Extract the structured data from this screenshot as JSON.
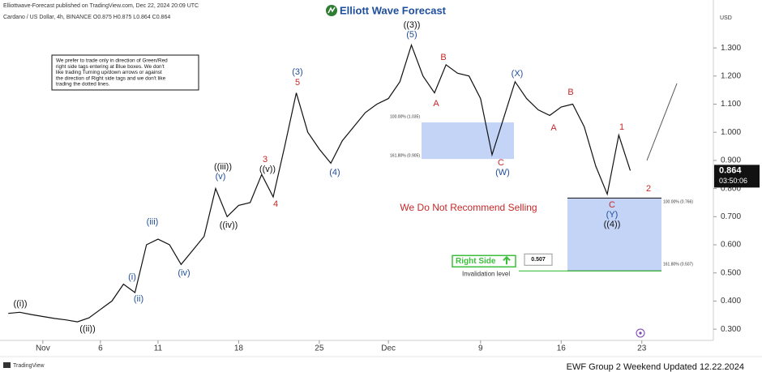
{
  "header": {
    "publisher": "Elliottwave-Forecast published on TradingView.com, Dec 22, 2024 20:09 UTC",
    "symbol": "Cardano / US Dollar, 4h, BINANCE  O0.875  H0.875  L0.864  C0.864",
    "logo": "Elliott Wave Forecast",
    "currency": "USD"
  },
  "chart_data": {
    "type": "line",
    "color": "#111111",
    "x": [
      "2024-10-29",
      "2024-10-30",
      "2024-10-31",
      "2024-11-01",
      "2024-11-02",
      "2024-11-03",
      "2024-11-04",
      "2024-11-05",
      "2024-11-06",
      "2024-11-07",
      "2024-11-08",
      "2024-11-09",
      "2024-11-10",
      "2024-11-11",
      "2024-11-12",
      "2024-11-13",
      "2024-11-14",
      "2024-11-15",
      "2024-11-16",
      "2024-11-17",
      "2024-11-18",
      "2024-11-19",
      "2024-11-20",
      "2024-11-21",
      "2024-11-22",
      "2024-11-23",
      "2024-11-24",
      "2024-11-25",
      "2024-11-26",
      "2024-11-27",
      "2024-11-28",
      "2024-11-29",
      "2024-11-30",
      "2024-12-01",
      "2024-12-02",
      "2024-12-03",
      "2024-12-04",
      "2024-12-05",
      "2024-12-06",
      "2024-12-07",
      "2024-12-08",
      "2024-12-09",
      "2024-12-10",
      "2024-12-11",
      "2024-12-12",
      "2024-12-13",
      "2024-12-14",
      "2024-12-15",
      "2024-12-16",
      "2024-12-17",
      "2024-12-18",
      "2024-12-19",
      "2024-12-20",
      "2024-12-21",
      "2024-12-22"
    ],
    "values": [
      0.356,
      0.36,
      0.352,
      0.345,
      0.338,
      0.333,
      0.326,
      0.34,
      0.37,
      0.4,
      0.46,
      0.43,
      0.6,
      0.62,
      0.6,
      0.53,
      0.58,
      0.63,
      0.8,
      0.7,
      0.74,
      0.75,
      0.85,
      0.77,
      0.95,
      1.14,
      1.0,
      0.94,
      0.89,
      0.97,
      1.02,
      1.07,
      1.1,
      1.12,
      1.18,
      1.31,
      1.2,
      1.14,
      1.24,
      1.21,
      1.2,
      1.12,
      0.92,
      1.05,
      1.18,
      1.12,
      1.08,
      1.06,
      1.09,
      1.1,
      1.02,
      0.88,
      0.78,
      0.99,
      0.864
    ],
    "xlim": [
      "2024-10-28",
      "2024-12-29"
    ],
    "ylim": [
      0.26,
      1.43
    ],
    "xticks": [
      {
        "value": "2024-11-01",
        "label": "Nov"
      },
      {
        "value": "2024-11-06",
        "label": "6"
      },
      {
        "value": "2024-11-11",
        "label": "11"
      },
      {
        "value": "2024-11-18",
        "label": "18"
      },
      {
        "value": "2024-11-25",
        "label": "25"
      },
      {
        "value": "2024-12-01",
        "label": "Dec"
      },
      {
        "value": "2024-12-09",
        "label": "9"
      },
      {
        "value": "2024-12-16",
        "label": "16"
      },
      {
        "value": "2024-12-23",
        "label": "23"
      }
    ],
    "yticks": [
      {
        "value": 0.3,
        "label": "0.300"
      },
      {
        "value": 0.4,
        "label": "0.400"
      },
      {
        "value": 0.5,
        "label": "0.500"
      },
      {
        "value": 0.6,
        "label": "0.600"
      },
      {
        "value": 0.7,
        "label": "0.700"
      },
      {
        "value": 0.8,
        "label": "0.800"
      },
      {
        "value": 0.9,
        "label": "0.900"
      },
      {
        "value": 1.0,
        "label": "1.000"
      },
      {
        "value": 1.1,
        "label": "1.100"
      },
      {
        "value": 1.2,
        "label": "1.200"
      },
      {
        "value": 1.3,
        "label": "1.300"
      }
    ],
    "grid": false,
    "last_price": {
      "value": 0.864,
      "label": "0.864",
      "countdown": "03:50:06"
    },
    "zones": [
      {
        "top": {
          "value": 1.035,
          "label": "100.00% (1.035)"
        },
        "bottom": {
          "value": 0.905,
          "label": "161.80% (0.905)"
        },
        "color": "#b8cdf6"
      },
      {
        "top": {
          "value": 0.766,
          "label": "100.00% (0.766)"
        },
        "bottom": {
          "value": 0.507,
          "label": "161.80% (0.507)"
        },
        "color": "#b8cdf6"
      }
    ],
    "invalidation": {
      "value": 0.507,
      "label": "0.507",
      "tag": "Right Side",
      "text": "Invalidation level",
      "color": "#3bbf3b"
    },
    "annotations": [
      {
        "text": "((i))",
        "color": "#111111"
      },
      {
        "text": "((ii))",
        "color": "#111111"
      },
      {
        "text": "(i)",
        "color": "#1f4e9c"
      },
      {
        "text": "(ii)",
        "color": "#1f4e9c"
      },
      {
        "text": "(iii)",
        "color": "#1f4e9c"
      },
      {
        "text": "(iv)",
        "color": "#1f4e9c"
      },
      {
        "text": "(v)",
        "color": "#1f4e9c"
      },
      {
        "text": "((iii))",
        "color": "#111111"
      },
      {
        "text": "((iv))",
        "color": "#111111"
      },
      {
        "text": "((v))",
        "color": "#111111"
      },
      {
        "text": "3",
        "color": "#c62828"
      },
      {
        "text": "4",
        "color": "#c62828"
      },
      {
        "text": "(3)",
        "color": "#1f4e9c"
      },
      {
        "text": "5",
        "color": "#c62828"
      },
      {
        "text": "(4)",
        "color": "#1f4e9c"
      },
      {
        "text": "((3))",
        "color": "#111111"
      },
      {
        "text": "(5)",
        "color": "#1f4e9c"
      },
      {
        "text": "A",
        "color": "#c62828"
      },
      {
        "text": "B",
        "color": "#c62828"
      },
      {
        "text": "(X)",
        "color": "#1f4e9c"
      },
      {
        "text": "C",
        "color": "#c62828"
      },
      {
        "text": "(W)",
        "color": "#1f4e9c"
      },
      {
        "text": "A",
        "color": "#c62828"
      },
      {
        "text": "B",
        "color": "#c62828"
      },
      {
        "text": "1",
        "color": "#c62828"
      },
      {
        "text": "2",
        "color": "#c62828"
      },
      {
        "text": "C",
        "color": "#c62828"
      },
      {
        "text": "(Y)",
        "color": "#1f4e9c"
      },
      {
        "text": "((4))",
        "color": "#111111"
      }
    ],
    "warning": "We Do Not Recommend Selling",
    "note": [
      "We prefer to trade only in direction of Green/Red",
      "right side tags entering at Blue boxes. We don't",
      "like trading Turning up/down arrows or against",
      "the direction of Right side tags and we don't like",
      "trading the dotted lines."
    ]
  },
  "footer": {
    "brand": "TradingView",
    "update": "EWF Group 2 Weekend Updated 12.22.2024"
  }
}
